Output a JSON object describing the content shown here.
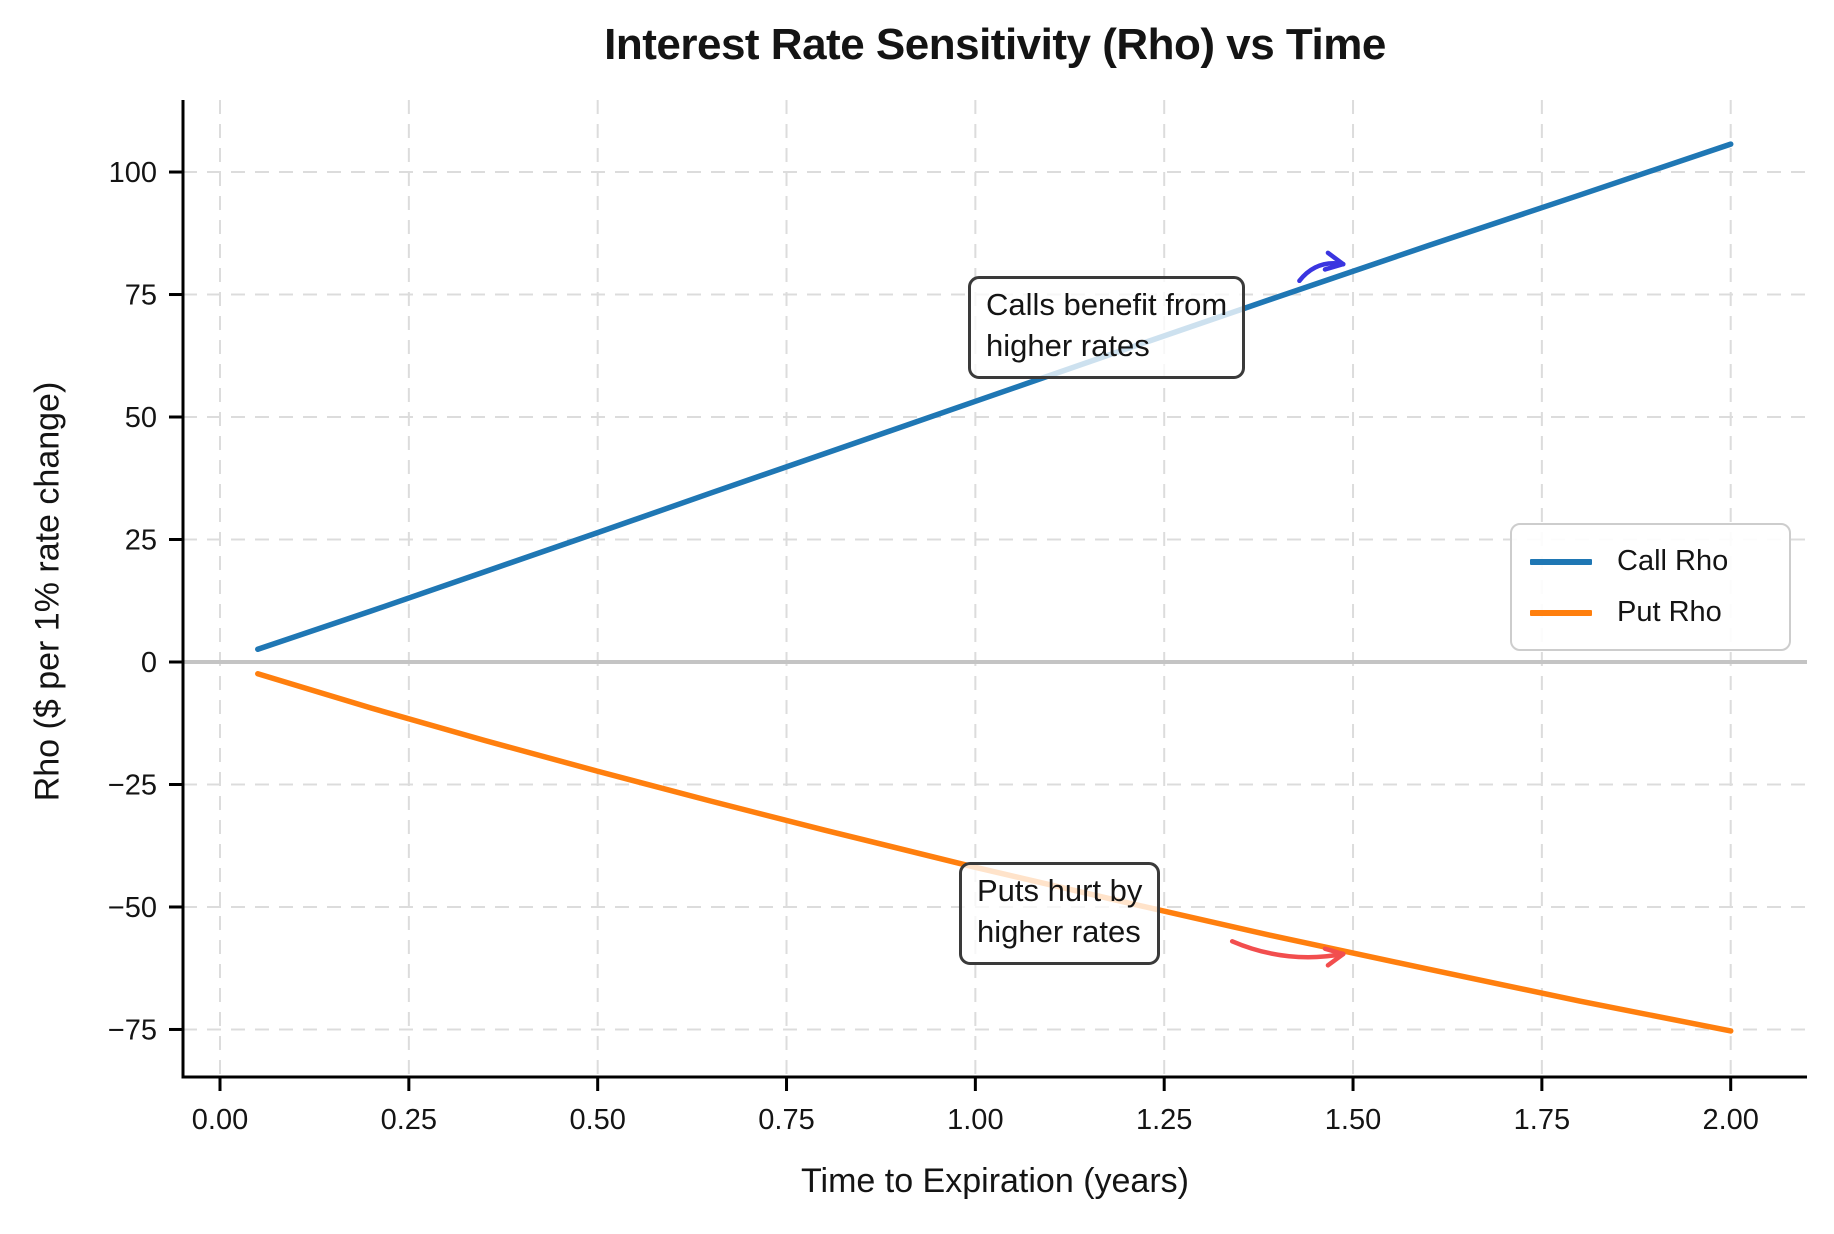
{
  "figure": {
    "title": "Interest Rate Sensitivity (Rho) vs Time"
  },
  "chart_data": {
    "type": "line",
    "title": "Interest Rate Sensitivity (Rho) vs Time",
    "xlabel": "Time to Expiration (years)",
    "ylabel": "Rho ($ per 1% rate change)",
    "x": [
      0.05,
      0.2,
      0.35,
      0.5,
      0.65,
      0.8,
      1.0,
      1.2,
      1.4,
      1.6,
      1.8,
      2.0
    ],
    "series": [
      {
        "name": "Call Rho",
        "color": "#1f77b4",
        "values": [
          2.6,
          10.4,
          18.4,
          26.4,
          34.5,
          42.5,
          53.2,
          63.9,
          74.5,
          85.0,
          95.3,
          105.7
        ]
      },
      {
        "name": "Put Rho",
        "color": "#ff7f0e",
        "values": [
          -2.4,
          -9.4,
          -16.0,
          -22.3,
          -28.4,
          -34.3,
          -41.9,
          -49.1,
          -56.1,
          -62.7,
          -69.2,
          -75.3
        ]
      }
    ],
    "xlim": [
      -0.049,
      2.101
    ],
    "ylim": [
      -84.7,
      114.7
    ],
    "x_ticks": {
      "values": [
        0.0,
        0.25,
        0.5,
        0.75,
        1.0,
        1.25,
        1.5,
        1.75,
        2.0
      ],
      "labels": [
        "0.00",
        "0.25",
        "0.50",
        "0.75",
        "1.00",
        "1.25",
        "1.50",
        "1.75",
        "2.00"
      ]
    },
    "y_ticks": {
      "values": [
        -75,
        -50,
        -25,
        0,
        25,
        50,
        75,
        100
      ],
      "labels": [
        "−75",
        "−50",
        "−25",
        "0",
        "25",
        "50",
        "75",
        "100"
      ]
    },
    "grid": true,
    "grid_color": "#dcdcdc",
    "zero_line": {
      "y": 0,
      "color": "#c4c4c4"
    },
    "legend": {
      "position": "center-right",
      "entries": [
        "Call Rho",
        "Put Rho"
      ]
    },
    "annotations": [
      {
        "id": "calls",
        "text": "Calls benefit from\nhigher rates",
        "arrow_color": "#3a35e0",
        "arrow_from": [
          1.429,
          77.8
        ],
        "arrow_to": [
          1.487,
          81.2
        ],
        "curve": -0.3
      },
      {
        "id": "puts",
        "text": "Puts hurt by\nhigher rates",
        "arrow_color": "#f24e4e",
        "arrow_from": [
          1.34,
          -57.0
        ],
        "arrow_to": [
          1.487,
          -59.6
        ],
        "curve": 0.15
      }
    ]
  }
}
